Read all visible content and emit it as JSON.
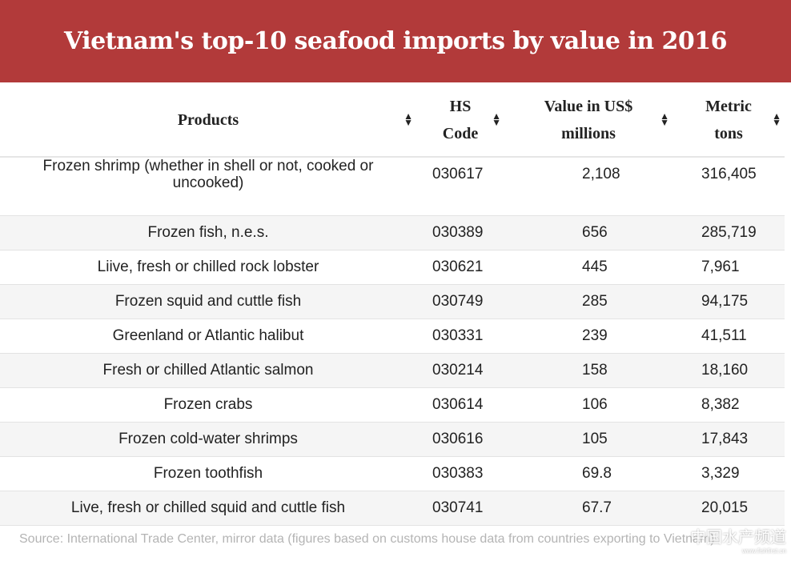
{
  "title": "Vietnam's top-10 seafood imports by value in 2016",
  "columns": [
    "Products",
    "HS Code",
    "Value in US$ millions",
    "Metric tons"
  ],
  "rows": [
    [
      "Frozen shrimp (whether in shell or not, cooked or uncooked)",
      "030617",
      "2,108",
      "316,405"
    ],
    [
      "Frozen fish, n.e.s.",
      "030389",
      "656",
      "285,719"
    ],
    [
      "Liive, fresh or chilled rock lobster",
      "030621",
      "445",
      "7,961"
    ],
    [
      "Frozen squid and cuttle fish",
      "030749",
      "285",
      "94,175"
    ],
    [
      "Greenland or Atlantic halibut",
      "030331",
      "239",
      "41,511"
    ],
    [
      "Fresh or chilled Atlantic salmon",
      "030214",
      "158",
      "18,160"
    ],
    [
      "Frozen crabs",
      "030614",
      "106",
      "8,382"
    ],
    [
      "Frozen cold-water shrimps",
      "030616",
      "105",
      "17,843"
    ],
    [
      "Frozen toothfish",
      "030383",
      "69.8",
      "3,329"
    ],
    [
      "Live, fresh or chilled squid and cuttle fish",
      "030741",
      "67.7",
      "20,015"
    ]
  ],
  "source": "Source: International Trade Center, mirror data (figures based on customs house data from countries exporting to Vietnam)",
  "watermark": {
    "text": "中国水产频道",
    "url": "www.fishfirst.cn"
  }
}
